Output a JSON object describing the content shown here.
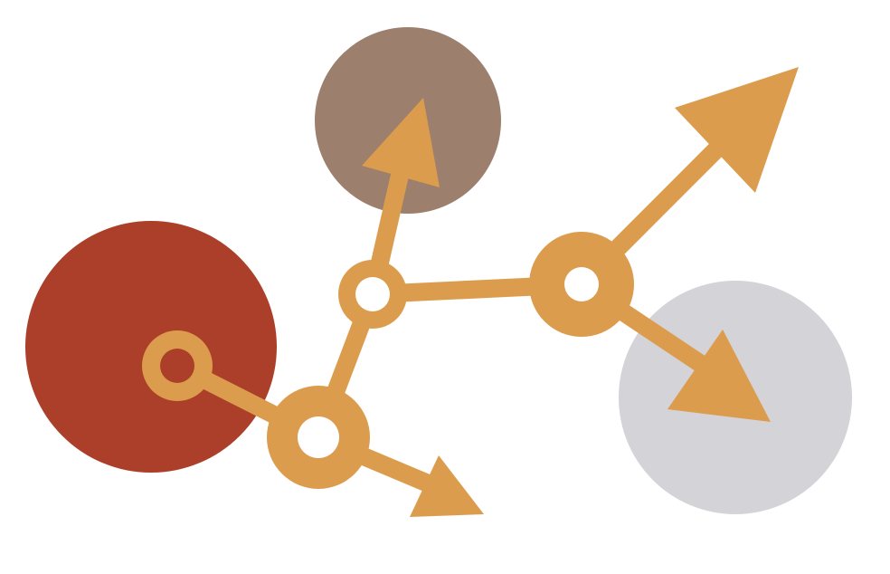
{
  "colors": {
    "background": "#ffffff",
    "rust_circle": "#ab3f2a",
    "taupe_circle": "#9c7f6c",
    "gray_circle": "#d4d3d8",
    "connector": "#dc9c4d",
    "node_hole": "#ffffff",
    "start_node_hole": "#ab3f2a"
  },
  "icons": {
    "arrow": "arrowhead-triangle",
    "node": "ring-node"
  }
}
